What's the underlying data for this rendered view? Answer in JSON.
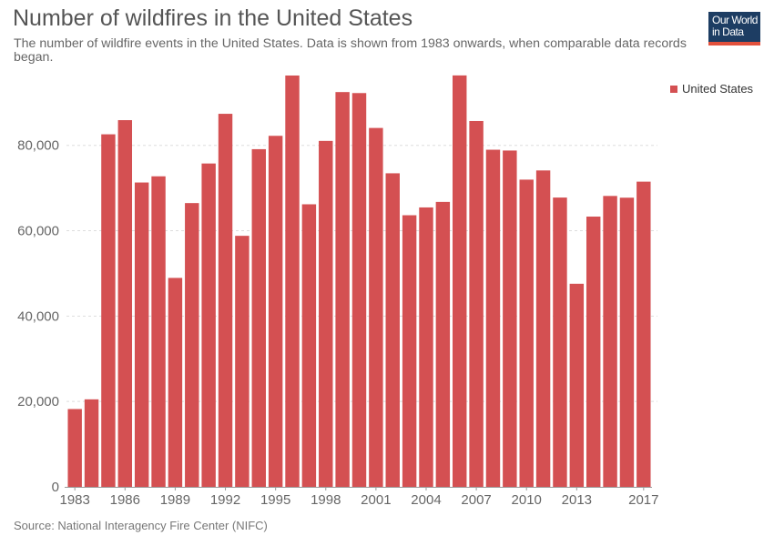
{
  "header": {
    "title": "Number of wildfires in the United States",
    "subtitle": "The number of wildfire events in the United States. Data is shown from 1983 onwards, when comparable data records began."
  },
  "logo": {
    "line1": "Our World",
    "line2": "in Data"
  },
  "footer": {
    "source": "Source: National Interagency Fire Center (NIFC)"
  },
  "colors": {
    "bar": "#d45052",
    "grid": "#dddddd",
    "text": "#666666"
  },
  "chart_data": {
    "type": "bar",
    "title": "Number of wildfires in the United States",
    "xlabel": "",
    "ylabel": "",
    "ylim": [
      0,
      97000
    ],
    "yticks": [
      0,
      20000,
      40000,
      60000,
      80000
    ],
    "ytick_labels": [
      "0",
      "20,000",
      "40,000",
      "60,000",
      "80,000"
    ],
    "xtick_labels": [
      "1983",
      "1986",
      "1989",
      "1992",
      "1995",
      "1998",
      "2001",
      "2004",
      "2007",
      "2010",
      "2013",
      "2017"
    ],
    "grid": "horizontal dashed",
    "legend": {
      "position": "top-right",
      "entries": [
        "United States"
      ]
    },
    "categories": [
      "1983",
      "1984",
      "1985",
      "1986",
      "1987",
      "1988",
      "1989",
      "1990",
      "1991",
      "1992",
      "1993",
      "1994",
      "1995",
      "1996",
      "1997",
      "1998",
      "1999",
      "2000",
      "2001",
      "2002",
      "2003",
      "2004",
      "2005",
      "2006",
      "2007",
      "2008",
      "2009",
      "2010",
      "2011",
      "2012",
      "2013",
      "2014",
      "2015",
      "2016",
      "2017"
    ],
    "series": [
      {
        "name": "United States",
        "values": [
          18229,
          20500,
          82591,
          85907,
          71300,
          72750,
          48949,
          66481,
          75754,
          87394,
          58810,
          79107,
          82234,
          96363,
          66196,
          81043,
          92487,
          92250,
          84079,
          73457,
          63629,
          65461,
          66753,
          96385,
          85705,
          78979,
          78792,
          71971,
          74126,
          67774,
          47579,
          63312,
          68151,
          67743,
          71499
        ]
      }
    ]
  }
}
